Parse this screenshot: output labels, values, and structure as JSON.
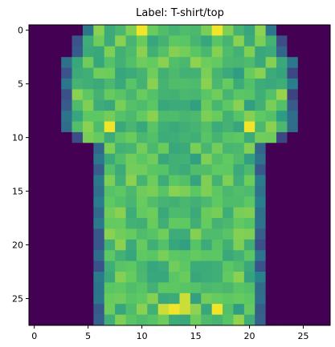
{
  "chart_data": {
    "type": "heatmap",
    "title": "Label: T-shirt/top",
    "colormap": "viridis",
    "grid": false,
    "xlim": [
      -0.5,
      27.5
    ],
    "ylim": [
      27.5,
      -0.5
    ],
    "x_ticks": [
      0,
      5,
      10,
      15,
      20,
      25
    ],
    "y_ticks": [
      0,
      5,
      10,
      15,
      20,
      25
    ],
    "value_range": [
      0,
      255
    ],
    "rows": 28,
    "cols": 28,
    "xlabel": "",
    "ylabel": ""
  }
}
